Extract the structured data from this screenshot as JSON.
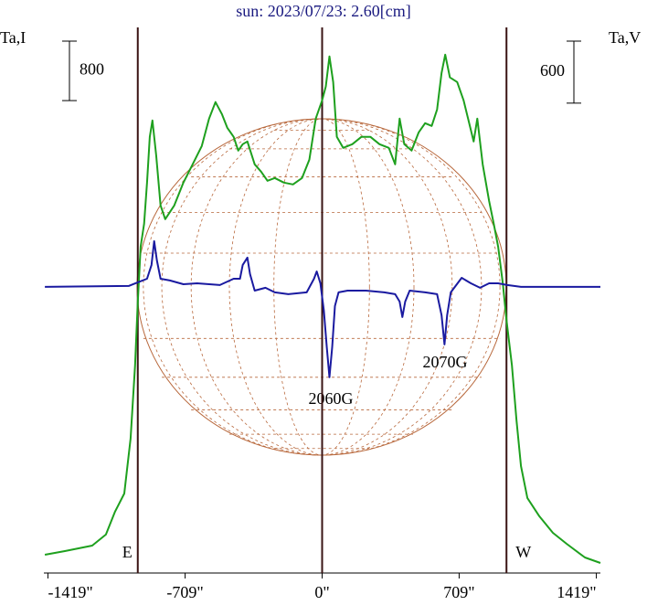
{
  "chart_data": {
    "type": "line",
    "title": "sun: 2023/07/23: 2.60[cm]",
    "y_label": "Ta,I",
    "y2_label": "Ta,V",
    "xlim": [
      -1440,
      1440
    ],
    "xticks": [
      {
        "value": -1419,
        "label": "-1419\""
      },
      {
        "value": -709,
        "label": "-709\""
      },
      {
        "value": 0,
        "label": "0\""
      },
      {
        "value": 709,
        "label": "709\""
      },
      {
        "value": 1419,
        "label": "1419\""
      }
    ],
    "ylim": [
      0,
      7340
    ],
    "y2lim": [
      -2760,
      2520
    ],
    "limbs": [
      {
        "value": -954,
        "label": "E"
      },
      {
        "value": 954,
        "label": "W"
      }
    ],
    "annotations": [
      {
        "text": "2060G"
      },
      {
        "text": "2070G"
      }
    ],
    "series": [
      {
        "color": "#1ea01e",
        "scale_bar": 800,
        "x": [
          -1435,
          -1331,
          -1190,
          -1119,
          -1072,
          -1024,
          -991,
          -968,
          -954,
          -939,
          -921,
          -906,
          -892,
          -878,
          -859,
          -836,
          -812,
          -765,
          -718,
          -670,
          -623,
          -585,
          -552,
          -519,
          -491,
          -458,
          -434,
          -411,
          -387,
          -349,
          -316,
          -283,
          -245,
          -198,
          -151,
          -104,
          -66,
          -33,
          0,
          19,
          38,
          57,
          76,
          109,
          156,
          203,
          250,
          297,
          345,
          378,
          401,
          425,
          463,
          500,
          533,
          567,
          595,
          618,
          637,
          661,
          699,
          732,
          755,
          784,
          803,
          831,
          864,
          888,
          911,
          935,
          954,
          982,
          1006,
          1029,
          1062,
          1124,
          1194,
          1265,
          1360,
          1440
        ],
        "values": [
          246,
          295,
          369,
          517,
          824,
          1070,
          1808,
          2792,
          3653,
          4391,
          4699,
          5252,
          5867,
          6089,
          5621,
          4945,
          4760,
          4945,
          5252,
          5498,
          5744,
          6113,
          6335,
          6175,
          5990,
          5867,
          5683,
          5769,
          5806,
          5498,
          5400,
          5277,
          5314,
          5252,
          5228,
          5314,
          5560,
          6113,
          6359,
          6544,
          6950,
          6605,
          5867,
          5720,
          5769,
          5867,
          5867,
          5769,
          5720,
          5498,
          6113,
          5769,
          5683,
          5929,
          6052,
          6015,
          6236,
          6728,
          6974,
          6667,
          6605,
          6359,
          6113,
          5806,
          6113,
          5498,
          5006,
          4699,
          4391,
          3899,
          3407,
          2792,
          2054,
          1439,
          1009,
          763,
          541,
          394,
          209,
          135
        ]
      },
      {
        "color": "#1a1aa0",
        "axis": "y2",
        "scale_bar": 600,
        "x": [
          -1435,
          -1001,
          -954,
          -906,
          -883,
          -869,
          -855,
          -836,
          -788,
          -718,
          -647,
          -529,
          -458,
          -425,
          -411,
          -387,
          -373,
          -349,
          -293,
          -245,
          -175,
          -80,
          -42,
          -28,
          -9,
          9,
          24,
          38,
          52,
          66,
          85,
          132,
          227,
          321,
          378,
          401,
          415,
          430,
          453,
          533,
          595,
          618,
          633,
          647,
          666,
          722,
          770,
          817,
          864,
          911,
          958,
          1029,
          1171,
          1440
        ],
        "values": [
          9,
          18,
          53,
          88,
          221,
          451,
          265,
          88,
          71,
          35,
          44,
          27,
          88,
          88,
          221,
          292,
          133,
          -27,
          0,
          -44,
          -62,
          -44,
          88,
          159,
          44,
          -221,
          -575,
          -866,
          -575,
          -177,
          -44,
          -27,
          -27,
          -44,
          -62,
          -133,
          -283,
          -133,
          -27,
          -44,
          -62,
          -265,
          -548,
          -265,
          -44,
          97,
          44,
          0,
          44,
          44,
          27,
          9,
          9,
          9
        ]
      }
    ]
  }
}
